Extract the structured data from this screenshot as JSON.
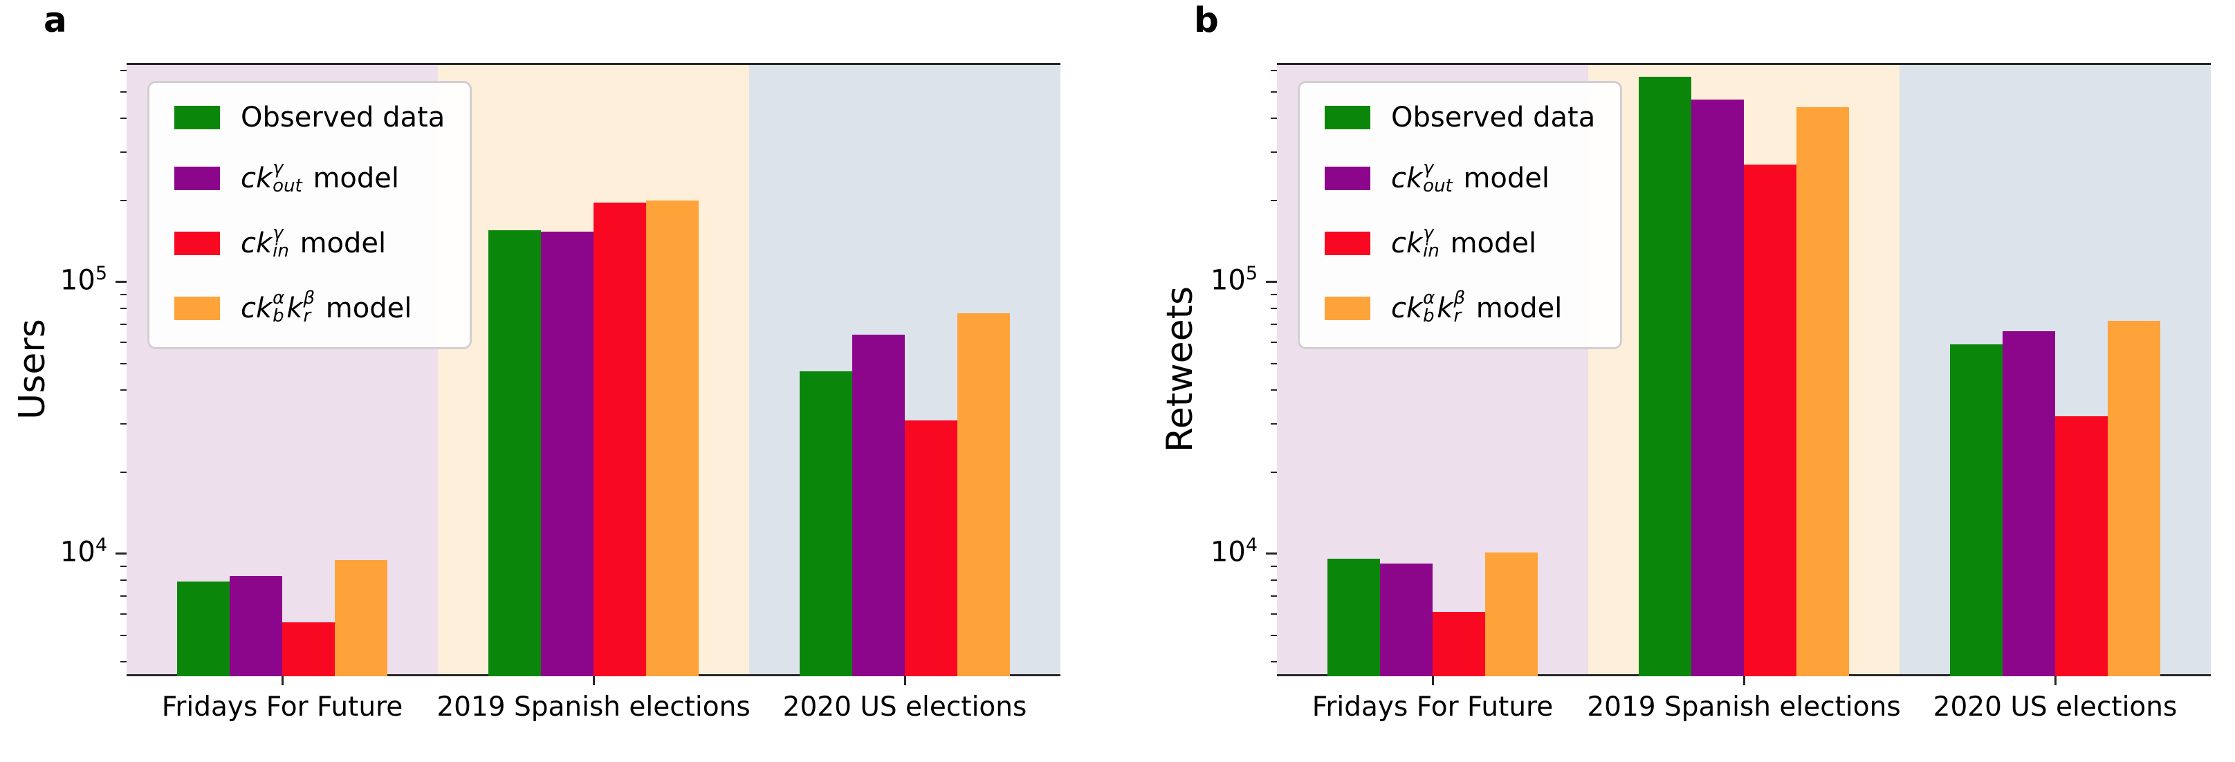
{
  "figure": {
    "axis_color": "#262626",
    "band_colors": [
      "#ede0ec",
      "#fdefd9",
      "#dce3ea"
    ],
    "series_colors": [
      "#0a870a",
      "#8c068c",
      "#f90822",
      "#fda33a"
    ],
    "y_ticks": [
      {
        "base": "10",
        "exp": "4",
        "value": 10000
      },
      {
        "base": "10",
        "exp": "5",
        "value": 100000
      }
    ],
    "legend": [
      {
        "color": "#0a870a",
        "segments": [
          {
            "t": "Observed data"
          }
        ]
      },
      {
        "color": "#8c068c",
        "segments": [
          {
            "t": "ck",
            "i": true
          },
          {
            "sup": "γ",
            "sub": "out"
          },
          {
            "t": " model"
          }
        ]
      },
      {
        "color": "#f90822",
        "segments": [
          {
            "t": "ck",
            "i": true
          },
          {
            "sup": "γ",
            "sub": "in"
          },
          {
            "t": " model"
          }
        ]
      },
      {
        "color": "#fda33a",
        "segments": [
          {
            "t": "ck",
            "i": true
          },
          {
            "sup": "α",
            "sub": "b"
          },
          {
            "t": "k",
            "i": true
          },
          {
            "sup": "β",
            "sub": "r"
          },
          {
            "t": " model"
          }
        ]
      }
    ]
  },
  "chart_data": [
    {
      "type": "bar",
      "panel_label": "a",
      "ylabel": "Users",
      "log_scale": true,
      "ylim": [
        3545,
        640000
      ],
      "grid": false,
      "legend_position": "upper left",
      "categories": [
        "Fridays For Future",
        "2019 Spanish elections",
        "2020 US elections"
      ],
      "series": [
        {
          "name": "Observed data",
          "values": [
            7900,
            155000,
            47000
          ]
        },
        {
          "name": "ck_out^γ model",
          "values": [
            8300,
            153000,
            64000
          ]
        },
        {
          "name": "ck_in^γ model",
          "values": [
            5600,
            196000,
            31000
          ]
        },
        {
          "name": "ck_b^α k_r^β model",
          "values": [
            9500,
            199000,
            77000
          ]
        }
      ]
    },
    {
      "type": "bar",
      "panel_label": "b",
      "ylabel": "Retweets",
      "log_scale": true,
      "ylim": [
        3545,
        640000
      ],
      "grid": false,
      "legend_position": "upper left",
      "categories": [
        "Fridays For Future",
        "2019 Spanish elections",
        "2020 US elections"
      ],
      "series": [
        {
          "name": "Observed data",
          "values": [
            9600,
            570000,
            59000
          ]
        },
        {
          "name": "ck_out^γ model",
          "values": [
            9200,
            470000,
            66000
          ]
        },
        {
          "name": "ck_in^γ model",
          "values": [
            6100,
            270000,
            32000
          ]
        },
        {
          "name": "ck_b^α k_r^β model",
          "values": [
            10100,
            440000,
            72000
          ]
        }
      ]
    }
  ]
}
